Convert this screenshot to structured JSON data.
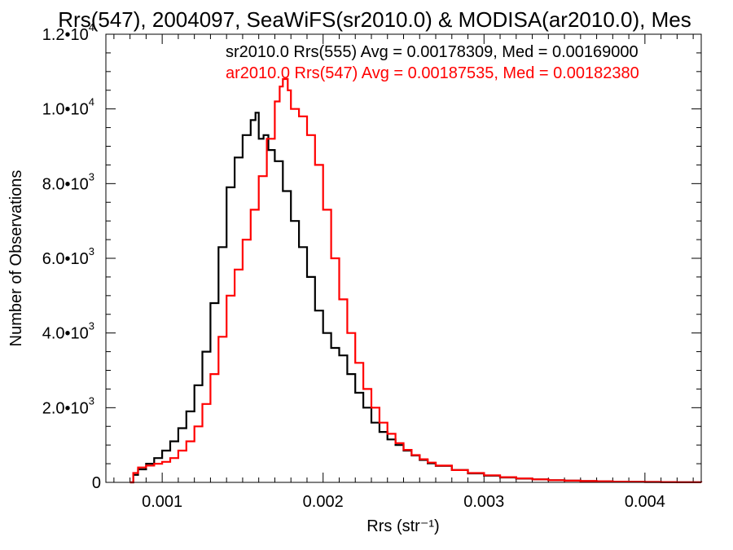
{
  "chart_data": {
    "type": "line",
    "title": "Rrs(547), 2004097, SeaWiFS(sr2010.0) & MODISA(ar2010.0), Mes",
    "xlabel": "Rrs (str⁻¹)",
    "ylabel": "Number of Observations",
    "xlim": [
      0.00065,
      0.00435
    ],
    "ylim": [
      0,
      12000
    ],
    "x_ticks": [
      {
        "value": 0.001,
        "label": "0.001"
      },
      {
        "value": 0.002,
        "label": "0.002"
      },
      {
        "value": 0.003,
        "label": "0.003"
      },
      {
        "value": 0.004,
        "label": "0.004"
      }
    ],
    "y_ticks": [
      {
        "value": 0,
        "mantissa": "0",
        "exp": ""
      },
      {
        "value": 2000,
        "mantissa": "2.0•10",
        "exp": "3"
      },
      {
        "value": 4000,
        "mantissa": "4.0•10",
        "exp": "3"
      },
      {
        "value": 6000,
        "mantissa": "6.0•10",
        "exp": "3"
      },
      {
        "value": 8000,
        "mantissa": "8.0•10",
        "exp": "3"
      },
      {
        "value": 10000,
        "mantissa": "1.0•10",
        "exp": "4"
      },
      {
        "value": 12000,
        "mantissa": "1.2•10",
        "exp": "4"
      }
    ],
    "legend_position": "top-right",
    "series": [
      {
        "name": "sr2010.0 Rrs(555) Avg = 0.00178309, Med = 0.00169000",
        "color": "#000000",
        "x": [
          0.0008,
          0.00082,
          0.00085,
          0.0009,
          0.00095,
          0.001,
          0.00105,
          0.0011,
          0.00115,
          0.0012,
          0.00125,
          0.0013,
          0.00135,
          0.0014,
          0.00145,
          0.0015,
          0.00155,
          0.00158,
          0.0016,
          0.00163,
          0.00166,
          0.0017,
          0.00175,
          0.0018,
          0.00185,
          0.0019,
          0.00195,
          0.002,
          0.00205,
          0.0021,
          0.00215,
          0.0022,
          0.00225,
          0.0023,
          0.00235,
          0.0024,
          0.00245,
          0.0025,
          0.00255,
          0.0026,
          0.00265,
          0.0027,
          0.0028,
          0.0029,
          0.003,
          0.0031,
          0.0032,
          0.0033,
          0.0034,
          0.0035,
          0.0036,
          0.0037,
          0.0038,
          0.0039,
          0.004,
          0.0041,
          0.0042,
          0.00435
        ],
        "y": [
          0,
          200,
          350,
          500,
          650,
          850,
          1100,
          1450,
          1900,
          2600,
          3500,
          4800,
          6300,
          7900,
          8700,
          9300,
          9700,
          9900,
          9200,
          9300,
          8900,
          8600,
          7800,
          7000,
          6300,
          5500,
          4600,
          4000,
          3600,
          3400,
          2900,
          2400,
          2000,
          1600,
          1350,
          1150,
          1000,
          850,
          720,
          600,
          510,
          440,
          330,
          240,
          180,
          130,
          100,
          80,
          60,
          45,
          35,
          28,
          20,
          15,
          10,
          8,
          5,
          0
        ]
      },
      {
        "name": "ar2010.0 Rrs(547) Avg = 0.00187535, Med = 0.00182380",
        "color": "#ff0000",
        "x": [
          0.0008,
          0.00082,
          0.00085,
          0.0009,
          0.00095,
          0.001,
          0.00105,
          0.0011,
          0.00115,
          0.0012,
          0.00125,
          0.0013,
          0.00135,
          0.0014,
          0.00145,
          0.0015,
          0.00155,
          0.0016,
          0.00165,
          0.0017,
          0.00173,
          0.00175,
          0.00178,
          0.0018,
          0.00185,
          0.0019,
          0.00195,
          0.002,
          0.00205,
          0.0021,
          0.00215,
          0.0022,
          0.00225,
          0.0023,
          0.00235,
          0.0024,
          0.00245,
          0.0025,
          0.00255,
          0.0026,
          0.00265,
          0.0027,
          0.0028,
          0.0029,
          0.003,
          0.0031,
          0.0032,
          0.0033,
          0.0034,
          0.0035,
          0.0036,
          0.0037,
          0.0038,
          0.0039,
          0.004,
          0.0041,
          0.0042,
          0.00435
        ],
        "y": [
          0,
          250,
          400,
          450,
          500,
          550,
          650,
          850,
          1100,
          1500,
          2100,
          2900,
          3900,
          5000,
          5700,
          6500,
          7300,
          8200,
          9200,
          10200,
          10600,
          10800,
          10500,
          10000,
          9800,
          9300,
          8500,
          7300,
          6000,
          4900,
          4000,
          3200,
          2500,
          2000,
          1600,
          1300,
          1050,
          870,
          730,
          620,
          530,
          450,
          330,
          250,
          190,
          140,
          105,
          80,
          60,
          45,
          35,
          28,
          20,
          15,
          10,
          8,
          5,
          0
        ]
      }
    ]
  }
}
